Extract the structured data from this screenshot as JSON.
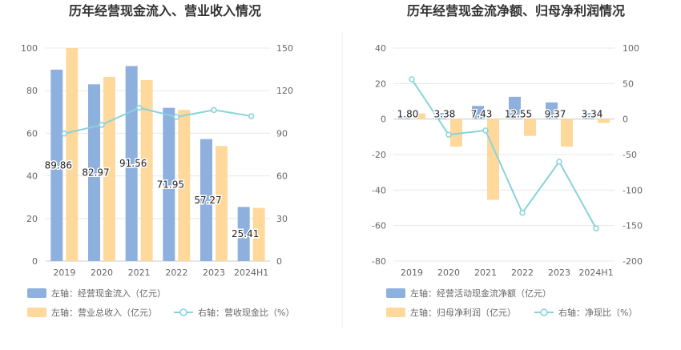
{
  "colors": {
    "bar_blue": "#8eb0de",
    "bar_orange": "#ffd99c",
    "line_teal": "#88d3da",
    "grid": "#e8e8e8",
    "divider": "#eeeeee"
  },
  "chart_data": [
    {
      "type": "bar",
      "title": "历年经营现金流入、营业收入情况",
      "categories": [
        "2019",
        "2020",
        "2021",
        "2022",
        "2023",
        "2024H1"
      ],
      "ylim_left": [
        0,
        100
      ],
      "yticks_left": [
        "0",
        "20",
        "40",
        "60",
        "80",
        "100"
      ],
      "ylim_right": [
        0,
        150
      ],
      "yticks_right": [
        "0",
        "30",
        "60",
        "90",
        "120",
        "150"
      ],
      "series": [
        {
          "name": "左轴：经营现金流入（亿元）",
          "axis": "left",
          "type": "bar",
          "values": [
            89.86,
            82.97,
            91.56,
            71.95,
            57.27,
            25.41
          ],
          "labels": [
            "89.86",
            "82.97",
            "91.56",
            "71.95",
            "57.27",
            "25.41"
          ]
        },
        {
          "name": "左轴：营业总收入（亿元）",
          "axis": "left",
          "type": "bar",
          "values": [
            100,
            86.5,
            85,
            71,
            54,
            25
          ]
        },
        {
          "name": "右轴：营收现金比（%）",
          "axis": "right",
          "type": "line",
          "values": [
            89.8,
            95.9,
            108.0,
            101.5,
            106.4,
            102.1
          ]
        }
      ],
      "grid": true,
      "legend_position": "bottom-left"
    },
    {
      "type": "bar",
      "title": "历年经营现金流净额、归母净利润情况",
      "categories": [
        "2019",
        "2020",
        "2021",
        "2022",
        "2023",
        "2024H1"
      ],
      "ylim_left": [
        -80,
        40
      ],
      "yticks_left": [
        "-80",
        "-60",
        "-40",
        "-20",
        "0",
        "20",
        "40"
      ],
      "ylim_right": [
        -200,
        100
      ],
      "yticks_right": [
        "-200",
        "-150",
        "-100",
        "-50",
        "0",
        "50",
        "100"
      ],
      "series": [
        {
          "name": "左轴：经营活动现金流净额（亿元）",
          "axis": "left",
          "type": "bar",
          "values": [
            1.8,
            3.38,
            7.43,
            12.55,
            9.37,
            3.34
          ],
          "labels": [
            "1.80",
            "3.38",
            "7.43",
            "12.55",
            "9.37",
            "3.34"
          ]
        },
        {
          "name": "左轴：归母净利润（亿元）",
          "axis": "left",
          "type": "bar",
          "values": [
            3.2,
            -15.5,
            -45.5,
            -9.5,
            -15.5,
            -2.2
          ]
        },
        {
          "name": "右轴：净现比（%）",
          "axis": "right",
          "type": "line",
          "values": [
            56,
            -22,
            -16,
            -132,
            -60,
            -154
          ]
        }
      ],
      "grid": true,
      "legend_position": "bottom-left"
    }
  ]
}
